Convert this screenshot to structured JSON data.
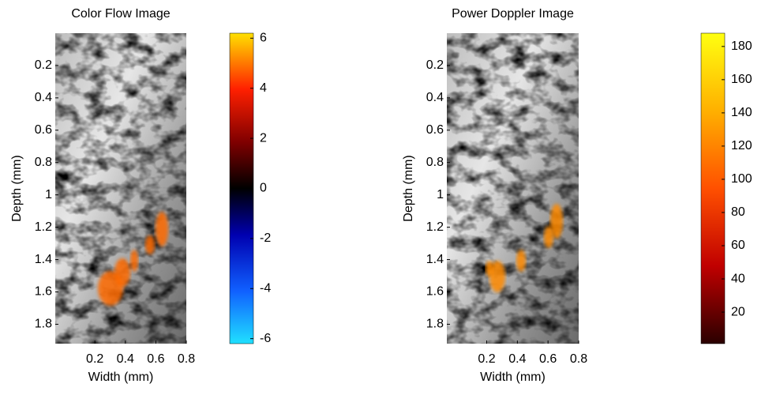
{
  "chart_data": [
    {
      "type": "image",
      "title": "Color Flow Image",
      "xlabel": "Width (mm)",
      "ylabel": "Depth (mm)",
      "xlim": [
        -0.06,
        0.8
      ],
      "xticks": [
        0.2,
        0.4,
        0.6,
        0.8
      ],
      "ylim": [
        0,
        1.92
      ],
      "yticks": [
        0.2,
        0.4,
        0.6,
        0.8,
        1,
        1.2,
        1.4,
        1.6,
        1.8
      ],
      "clim": [
        -6.2,
        6.2
      ],
      "cticks": [
        -6,
        -4,
        -2,
        0,
        2,
        4,
        6
      ]
    },
    {
      "type": "image",
      "title": "Power Doppler Image",
      "xlabel": "Width (mm)",
      "ylabel": "Depth (mm)",
      "xlim": [
        -0.06,
        0.8
      ],
      "xticks": [
        0.2,
        0.4,
        0.6,
        0.8
      ],
      "ylim": [
        0,
        1.92
      ],
      "yticks": [
        0.2,
        0.4,
        0.6,
        0.8,
        1,
        1.2,
        1.4,
        1.6,
        1.8
      ],
      "clim": [
        1,
        188
      ],
      "cticks": [
        20,
        40,
        60,
        80,
        100,
        120,
        140,
        160,
        180
      ]
    }
  ]
}
